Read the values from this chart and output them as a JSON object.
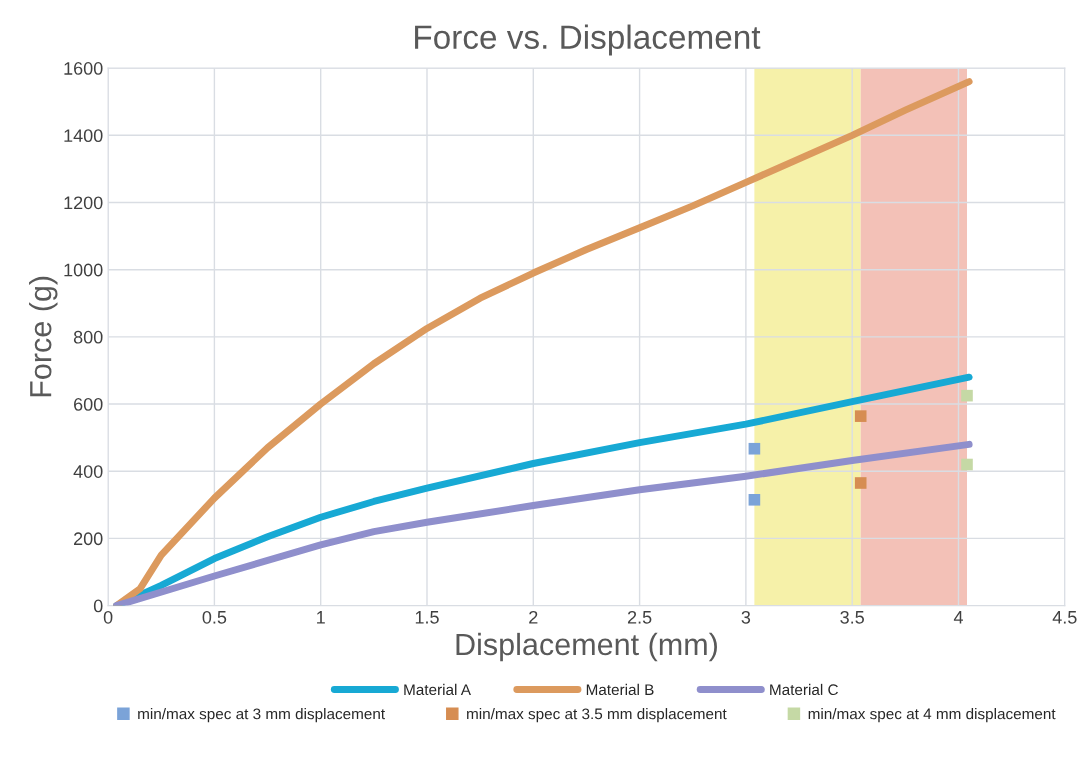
{
  "chart_data": {
    "type": "line",
    "title": "Force vs. Displacement",
    "xlabel": "Displacement (mm)",
    "ylabel": "Force (g)",
    "xlim": [
      0,
      4.5
    ],
    "xticks": [
      0,
      0.5,
      1,
      1.5,
      2,
      2.5,
      3,
      3.5,
      4,
      4.5
    ],
    "ylim": [
      0,
      1600
    ],
    "yticks": [
      0,
      200,
      400,
      600,
      800,
      1000,
      1200,
      1400,
      1600
    ],
    "grid": true,
    "legend": "bottom",
    "marker": "none",
    "line_style": "solid",
    "bands": [
      {
        "axis": "x",
        "from": 3.04,
        "to": 3.54,
        "color": "#f6f1a9"
      },
      {
        "axis": "x",
        "from": 3.54,
        "to": 4.04,
        "color": "#f3c1b7"
      }
    ],
    "series": [
      {
        "name": "Material A",
        "color": "#17a9d4",
        "x": [
          0.04,
          0.25,
          0.5,
          0.75,
          1,
          1.25,
          1.5,
          2,
          2.5,
          3,
          3.5,
          4.05
        ],
        "values": [
          0,
          60,
          140,
          205,
          263,
          310,
          350,
          423,
          485,
          540,
          607,
          680
        ]
      },
      {
        "name": "Material B",
        "color": "#dc9a5e",
        "x": [
          0.04,
          0.15,
          0.25,
          0.5,
          0.75,
          1,
          1.25,
          1.5,
          1.75,
          2,
          2.25,
          2.5,
          2.75,
          3,
          3.25,
          3.5,
          3.75,
          4.05
        ],
        "values": [
          0,
          50,
          150,
          320,
          470,
          600,
          720,
          825,
          915,
          990,
          1060,
          1125,
          1190,
          1260,
          1330,
          1400,
          1475,
          1560
        ]
      },
      {
        "name": "Material C",
        "color": "#8f8fcc",
        "x": [
          0.04,
          0.5,
          1,
          1.25,
          1.5,
          2,
          2.5,
          3,
          3.5,
          4.05
        ],
        "values": [
          0,
          88,
          181,
          220,
          248,
          298,
          345,
          385,
          432,
          480
        ]
      },
      {
        "name": "min/max spec at 3 mm displacement",
        "type": "scatter",
        "marker": "square",
        "color": "#7ba3d8",
        "x": [
          3.04,
          3.04
        ],
        "values": [
          467,
          315
        ]
      },
      {
        "name": "min/max spec at 3.5 mm displacement",
        "type": "scatter",
        "marker": "square",
        "color": "#d68d52",
        "x": [
          3.54,
          3.54
        ],
        "values": [
          564,
          365
        ]
      },
      {
        "name": "min/max spec at 4 mm displacement",
        "type": "scatter",
        "marker": "square",
        "color": "#c5d9a5",
        "x": [
          4.04,
          4.04
        ],
        "values": [
          625,
          420
        ]
      }
    ]
  }
}
